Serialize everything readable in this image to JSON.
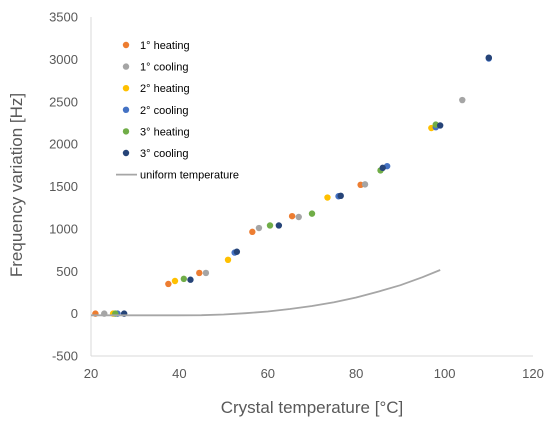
{
  "chart_data": {
    "type": "scatter",
    "title": "",
    "xlabel": "Crystal temperature [°C]",
    "ylabel": "Frequency variation [Hz]",
    "xlim": [
      20,
      120
    ],
    "ylim": [
      -500,
      3500
    ],
    "x_ticks": [
      20,
      40,
      60,
      80,
      100,
      120
    ],
    "y_ticks": [
      -500,
      0,
      500,
      1000,
      1500,
      2000,
      2500,
      3000,
      3500
    ],
    "grid": false,
    "legend_position": "top-left",
    "series": [
      {
        "name": "1° heating",
        "kind": "markers",
        "color": "#ED7D31",
        "points": [
          [
            21.0,
            0
          ],
          [
            37.5,
            350
          ],
          [
            44.5,
            480
          ],
          [
            56.5,
            965
          ],
          [
            65.5,
            1150
          ],
          [
            81.0,
            1520
          ]
        ]
      },
      {
        "name": "1° cooling",
        "kind": "markers",
        "color": "#A5A5A5",
        "points": [
          [
            23.0,
            0
          ],
          [
            46.0,
            480
          ],
          [
            58.0,
            1010
          ],
          [
            67.0,
            1140
          ],
          [
            82.0,
            1525
          ],
          [
            104.0,
            2520
          ]
        ]
      },
      {
        "name": "2° heating",
        "kind": "markers",
        "color": "#FFC000",
        "points": [
          [
            25.0,
            0
          ],
          [
            39.0,
            385
          ],
          [
            51.0,
            635
          ],
          [
            73.5,
            1370
          ],
          [
            97.0,
            2190
          ]
        ]
      },
      {
        "name": "2° cooling",
        "kind": "markers",
        "color": "#4472C4",
        "points": [
          [
            26.0,
            0
          ],
          [
            52.5,
            720
          ],
          [
            76.0,
            1385
          ],
          [
            87.0,
            1740
          ],
          [
            98.0,
            2200
          ],
          [
            110.0,
            3010
          ]
        ]
      },
      {
        "name": "3° heating",
        "kind": "markers",
        "color": "#70AD47",
        "points": [
          [
            25.5,
            0
          ],
          [
            41.0,
            410
          ],
          [
            60.5,
            1040
          ],
          [
            70.0,
            1180
          ],
          [
            85.5,
            1690
          ],
          [
            98.0,
            2230
          ]
        ]
      },
      {
        "name": "3° cooling",
        "kind": "markers",
        "color": "#264478",
        "points": [
          [
            27.5,
            0
          ],
          [
            42.5,
            400
          ],
          [
            53.0,
            730
          ],
          [
            62.5,
            1040
          ],
          [
            76.5,
            1390
          ],
          [
            86.0,
            1720
          ],
          [
            99.0,
            2220
          ],
          [
            110.0,
            3020
          ]
        ]
      },
      {
        "name": "uniform temperature",
        "kind": "line",
        "color": "#A6A6A6",
        "points": [
          [
            20,
            -20
          ],
          [
            30,
            -20
          ],
          [
            40,
            -20
          ],
          [
            45,
            -18
          ],
          [
            50,
            -10
          ],
          [
            55,
            5
          ],
          [
            60,
            25
          ],
          [
            65,
            55
          ],
          [
            70,
            90
          ],
          [
            75,
            135
          ],
          [
            80,
            190
          ],
          [
            85,
            260
          ],
          [
            90,
            335
          ],
          [
            95,
            430
          ],
          [
            99,
            515
          ]
        ]
      }
    ]
  }
}
